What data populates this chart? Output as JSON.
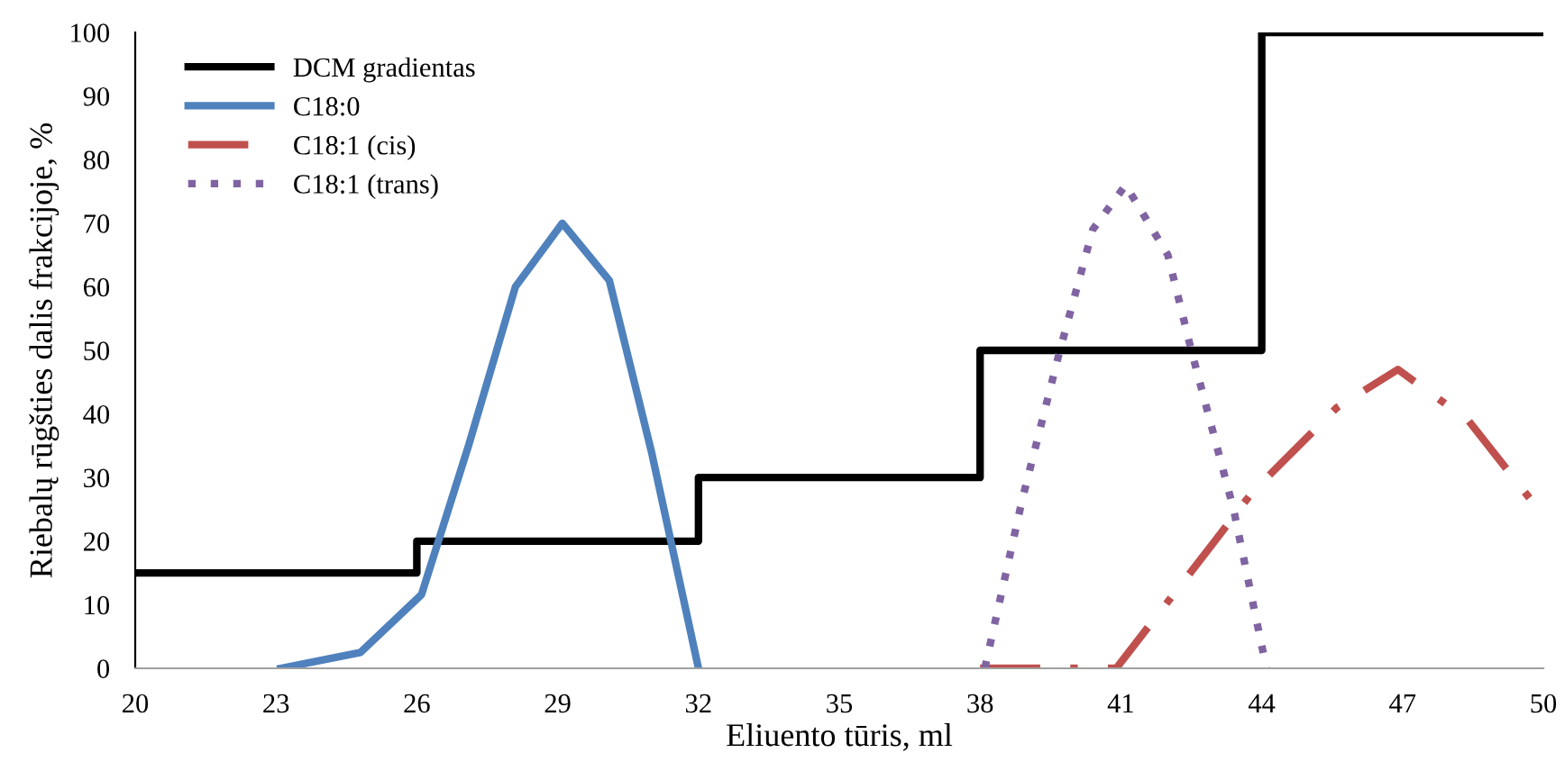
{
  "chart_data": {
    "type": "line",
    "xlabel": "Eliuento tūris, ml",
    "ylabel": "Riebalų rūgšties dalis frakcijoje, %",
    "xlim": [
      20,
      50
    ],
    "xticks": [
      20,
      23,
      26,
      29,
      32,
      35,
      38,
      41,
      44,
      47,
      50
    ],
    "ylim": [
      0,
      100
    ],
    "yticks": [
      0,
      10,
      20,
      30,
      40,
      50,
      60,
      70,
      80,
      90,
      100
    ],
    "grid": false,
    "legend": "top left",
    "series": [
      {
        "name": "DCM gradientas",
        "type": "step",
        "color": "#000000",
        "line_style": "solid",
        "x": [
          20,
          26,
          32,
          38,
          44,
          50
        ],
        "values": [
          15,
          20,
          30,
          50,
          100,
          100
        ]
      },
      {
        "name": "C18:0",
        "color": "#4f81bd",
        "line_style": "solid",
        "x": [
          23.1,
          24.8,
          26.1,
          27.1,
          28.1,
          29.1,
          30.1,
          31.0,
          32.0
        ],
        "values": [
          0,
          2.5,
          11.6,
          35,
          60,
          70,
          61,
          34,
          0
        ]
      },
      {
        "name": "C18:1 (cis)",
        "color": "#c0504d",
        "line_style": "dashdot",
        "x": [
          38.0,
          40.9,
          43.0,
          43.8,
          45.6,
          46.9,
          48.4,
          50.0
        ],
        "values": [
          0,
          0,
          20,
          27.7,
          41,
          47,
          39,
          24
        ]
      },
      {
        "name": "C18:1 (trans)",
        "color": "#8064a2",
        "line_style": "dotted",
        "x": [
          38.1,
          38.9,
          39.7,
          40.4,
          41.1,
          42.0,
          42.5,
          43.4,
          44.1
        ],
        "values": [
          0,
          26.6,
          50,
          69,
          76,
          65,
          50,
          25,
          0
        ]
      }
    ]
  }
}
